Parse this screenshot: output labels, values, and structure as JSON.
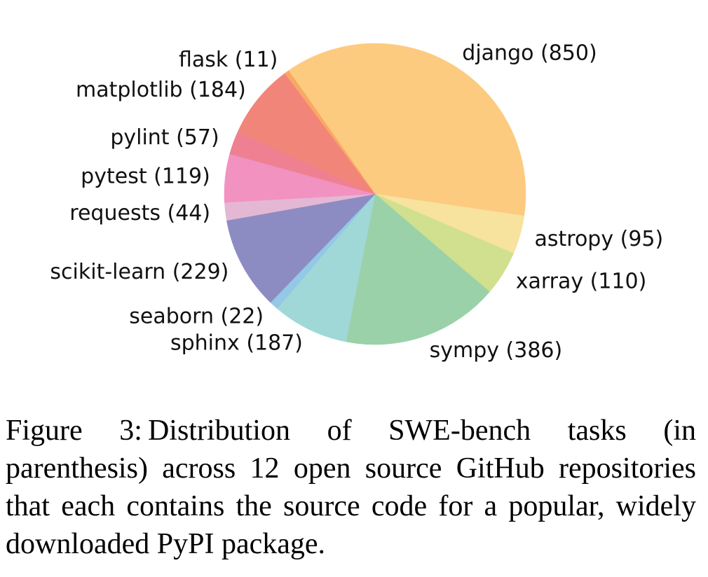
{
  "chart_data": {
    "type": "pie",
    "categories": [
      "django",
      "astropy",
      "xarray",
      "sympy",
      "sphinx",
      "seaborn",
      "scikit-learn",
      "requests",
      "pytest",
      "pylint",
      "matplotlib",
      "flask"
    ],
    "values": [
      850,
      95,
      110,
      386,
      187,
      22,
      229,
      44,
      119,
      57,
      184,
      11
    ],
    "slice_labels": [
      "django (850)",
      "astropy (95)",
      "xarray (110)",
      "sympy (386)",
      "sphinx (187)",
      "seaborn (22)",
      "scikit-learn (229)",
      "requests (44)",
      "pytest (119)",
      "pylint (57)",
      "matplotlib (184)",
      "flask (11)"
    ],
    "colors": [
      "#fccb80",
      "#f7e29e",
      "#d0e08e",
      "#9ad1a9",
      "#a0d8d8",
      "#93c8e6",
      "#8d8cc2",
      "#e4b8d5",
      "#f292c1",
      "#ee8091",
      "#f2857a",
      "#f8a866"
    ],
    "start_angle_deg": 125,
    "direction": "clockwise"
  },
  "caption": {
    "label": "Figure 3:",
    "text": "Distribution of SWE-bench tasks (in parenthesis) across 12 open source GitHub repositories that each contains the source code for a popular, widely downloaded PyPI package."
  }
}
